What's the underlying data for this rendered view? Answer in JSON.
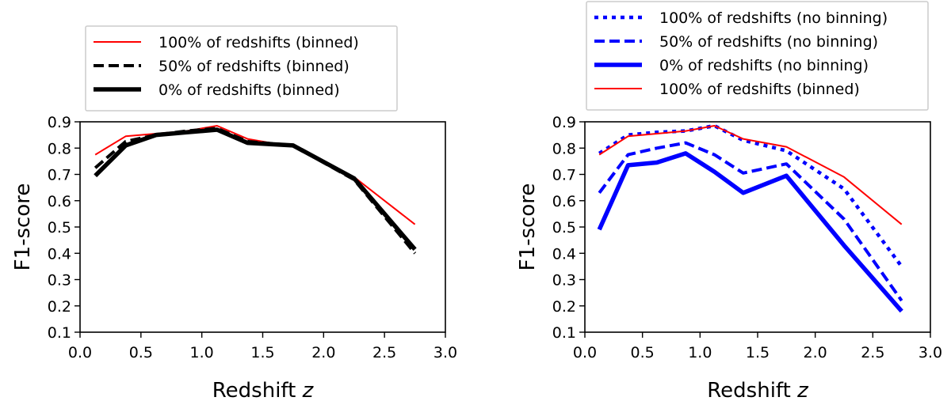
{
  "chart_data": [
    {
      "type": "line",
      "xlabel": "Redshift",
      "xlabel_var": "z",
      "ylabel": "F1-score",
      "xlim": [
        0.0,
        3.0
      ],
      "ylim": [
        0.1,
        0.9
      ],
      "xticks": [
        "0.0",
        "0.5",
        "1.0",
        "1.5",
        "2.0",
        "2.5",
        "3.0"
      ],
      "yticks": [
        "0.1",
        "0.2",
        "0.3",
        "0.4",
        "0.5",
        "0.6",
        "0.7",
        "0.8",
        "0.9"
      ],
      "legend_position": "above",
      "x": [
        0.125,
        0.375,
        0.625,
        0.875,
        1.125,
        1.375,
        1.75,
        2.25,
        2.75
      ],
      "series": [
        {
          "name": "100% of redshifts (binned)",
          "color": "#ff0000",
          "style": "solid-thin",
          "values": [
            0.775,
            0.845,
            0.855,
            0.865,
            0.885,
            0.835,
            0.805,
            0.69,
            0.51
          ]
        },
        {
          "name": "50% of redshifts (binned)",
          "color": "#000000",
          "style": "dashed",
          "values": [
            0.725,
            0.825,
            0.85,
            0.865,
            0.875,
            0.825,
            0.81,
            0.68,
            0.4
          ]
        },
        {
          "name": "0% of redshifts (binned)",
          "color": "#000000",
          "style": "solid-thick",
          "values": [
            0.695,
            0.81,
            0.85,
            0.86,
            0.87,
            0.82,
            0.81,
            0.685,
            0.415
          ]
        }
      ]
    },
    {
      "type": "line",
      "xlabel": "Redshift",
      "xlabel_var": "z",
      "ylabel": "F1-score",
      "xlim": [
        0.0,
        3.0
      ],
      "ylim": [
        0.1,
        0.9
      ],
      "xticks": [
        "0.0",
        "0.5",
        "1.0",
        "1.5",
        "2.0",
        "2.5",
        "3.0"
      ],
      "yticks": [
        "0.1",
        "0.2",
        "0.3",
        "0.4",
        "0.5",
        "0.6",
        "0.7",
        "0.8",
        "0.9"
      ],
      "legend_position": "above",
      "x": [
        0.125,
        0.375,
        0.625,
        0.875,
        1.125,
        1.375,
        1.75,
        2.25,
        2.75
      ],
      "series": [
        {
          "name": "100% of redshifts (no binning)",
          "color": "#0000ff",
          "style": "dotted",
          "values": [
            0.78,
            0.85,
            0.86,
            0.865,
            0.885,
            0.83,
            0.79,
            0.645,
            0.35
          ]
        },
        {
          "name": "50% of redshifts (no binning)",
          "color": "#0000ff",
          "style": "dashed",
          "values": [
            0.63,
            0.775,
            0.8,
            0.82,
            0.775,
            0.705,
            0.74,
            0.53,
            0.22
          ]
        },
        {
          "name": "0% of redshifts (no binning)",
          "color": "#0000ff",
          "style": "solid-thick",
          "values": [
            0.49,
            0.735,
            0.745,
            0.78,
            0.71,
            0.63,
            0.695,
            0.43,
            0.18
          ]
        },
        {
          "name": "100% of redshifts (binned)",
          "color": "#ff0000",
          "style": "solid-thin",
          "values": [
            0.775,
            0.845,
            0.855,
            0.865,
            0.885,
            0.835,
            0.805,
            0.69,
            0.51
          ]
        }
      ]
    }
  ]
}
